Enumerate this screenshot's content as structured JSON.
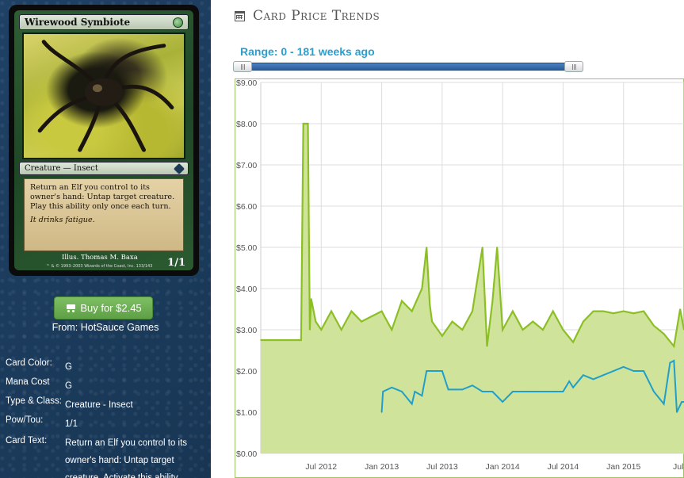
{
  "card": {
    "name": "Wirewood Symbiote",
    "type_line": "Creature — Insect",
    "rules_text": "Return an Elf you control to its owner's hand: Untap target creature. Play this ability only once each turn.",
    "flavor_text": "It drinks fatigue.",
    "illustrator": "Illus. Thomas M. Baxa",
    "copyright": "™ & © 1993–2003 Wizards of the Coast, Inc. 133/143",
    "power_toughness": "1/1"
  },
  "buy": {
    "label": "Buy for $2.45",
    "from": "From: HotSauce Games"
  },
  "details": [
    {
      "label": "Card Color:",
      "value": "G"
    },
    {
      "label": "Mana Cost",
      "value": "G"
    },
    {
      "label": "Type & Class:",
      "value": "Creature - Insect"
    },
    {
      "label": "Pow/Tou:",
      "value": "1/1"
    },
    {
      "label": "Card Text:",
      "value": "Return an Elf you control to its owner's hand: Untap target creature. Activate this ability"
    }
  ],
  "header": {
    "title": "Card Price Trends"
  },
  "range": {
    "label": "Range: 0 - 181 weeks ago",
    "start": 0,
    "end": 181
  },
  "colors": {
    "green_line": "#8cbf26",
    "green_fill": "#cfe39a",
    "blue_line": "#1f9fc9",
    "chart_border": "#9cc36a"
  },
  "chart_data": {
    "type": "area",
    "y_tick_labels": [
      "$0.00",
      "$1.00",
      "$2.00",
      "$3.00",
      "$4.00",
      "$5.00",
      "$6.00",
      "$7.00",
      "$8.00",
      "$9.00"
    ],
    "x_tick_labels": [
      "Jul 2012",
      "Jan 2013",
      "Jul 2013",
      "Jan 2014",
      "Jul 2014",
      "Jan 2015",
      "Jul 20"
    ],
    "ylim": [
      0,
      9
    ],
    "x_range": [
      "2012-01",
      "2015-07"
    ],
    "grid": true,
    "series": [
      {
        "style": "area",
        "points": [
          [
            "2012-01",
            2.75
          ],
          [
            "2012-05",
            2.75
          ],
          [
            "2012-05-08",
            8.0
          ],
          [
            "2012-05-22",
            8.0
          ],
          [
            "2012-05-28",
            3.0
          ],
          [
            "2012-06",
            3.75
          ],
          [
            "2012-06-15",
            3.2
          ],
          [
            "2012-07",
            3.0
          ],
          [
            "2012-08",
            3.45
          ],
          [
            "2012-09",
            3.0
          ],
          [
            "2012-10",
            3.45
          ],
          [
            "2012-11",
            3.2
          ],
          [
            "2013-01",
            3.45
          ],
          [
            "2013-02",
            3.0
          ],
          [
            "2013-03",
            3.7
          ],
          [
            "2013-04",
            3.45
          ],
          [
            "2013-05",
            4.0
          ],
          [
            "2013-05-15",
            5.0
          ],
          [
            "2013-05-25",
            3.6
          ],
          [
            "2013-06",
            3.2
          ],
          [
            "2013-07",
            2.85
          ],
          [
            "2013-08",
            3.2
          ],
          [
            "2013-09",
            3.0
          ],
          [
            "2013-10",
            3.45
          ],
          [
            "2013-11",
            5.0
          ],
          [
            "2013-11-15",
            2.6
          ],
          [
            "2013-12",
            3.7
          ],
          [
            "2013-12-15",
            5.0
          ],
          [
            "2014-01",
            3.0
          ],
          [
            "2014-02",
            3.45
          ],
          [
            "2014-03",
            3.0
          ],
          [
            "2014-04",
            3.2
          ],
          [
            "2014-05",
            3.0
          ],
          [
            "2014-06",
            3.45
          ],
          [
            "2014-07",
            3.0
          ],
          [
            "2014-08",
            2.7
          ],
          [
            "2014-09",
            3.2
          ],
          [
            "2014-10",
            3.45
          ],
          [
            "2014-11",
            3.45
          ],
          [
            "2014-12",
            3.4
          ],
          [
            "2015-01",
            3.45
          ],
          [
            "2015-02",
            3.4
          ],
          [
            "2015-03",
            3.45
          ],
          [
            "2015-04",
            3.1
          ],
          [
            "2015-05",
            2.9
          ],
          [
            "2015-06",
            2.6
          ],
          [
            "2015-06-20",
            3.5
          ],
          [
            "2015-07",
            3.0
          ]
        ]
      },
      {
        "style": "line",
        "points": [
          [
            "2013-01",
            1.0
          ],
          [
            "2013-01-05",
            1.5
          ],
          [
            "2013-02",
            1.6
          ],
          [
            "2013-03",
            1.5
          ],
          [
            "2013-04",
            1.2
          ],
          [
            "2013-04-10",
            1.5
          ],
          [
            "2013-05",
            1.4
          ],
          [
            "2013-05-15",
            2.0
          ],
          [
            "2013-06",
            2.0
          ],
          [
            "2013-07",
            2.0
          ],
          [
            "2013-07-20",
            1.55
          ],
          [
            "2013-09",
            1.55
          ],
          [
            "2013-10",
            1.65
          ],
          [
            "2013-11",
            1.5
          ],
          [
            "2013-12",
            1.5
          ],
          [
            "2014-01",
            1.25
          ],
          [
            "2014-02",
            1.5
          ],
          [
            "2014-04",
            1.5
          ],
          [
            "2014-06",
            1.5
          ],
          [
            "2014-07",
            1.5
          ],
          [
            "2014-07-20",
            1.75
          ],
          [
            "2014-08",
            1.6
          ],
          [
            "2014-09",
            1.9
          ],
          [
            "2014-10",
            1.8
          ],
          [
            "2014-11",
            1.9
          ],
          [
            "2015-01",
            2.1
          ],
          [
            "2015-02",
            2.0
          ],
          [
            "2015-03",
            2.0
          ],
          [
            "2015-04",
            1.5
          ],
          [
            "2015-05",
            1.2
          ],
          [
            "2015-05-20",
            2.2
          ],
          [
            "2015-06",
            2.25
          ],
          [
            "2015-06-10",
            1.0
          ],
          [
            "2015-06-25",
            1.25
          ],
          [
            "2015-07",
            1.25
          ]
        ]
      }
    ]
  }
}
